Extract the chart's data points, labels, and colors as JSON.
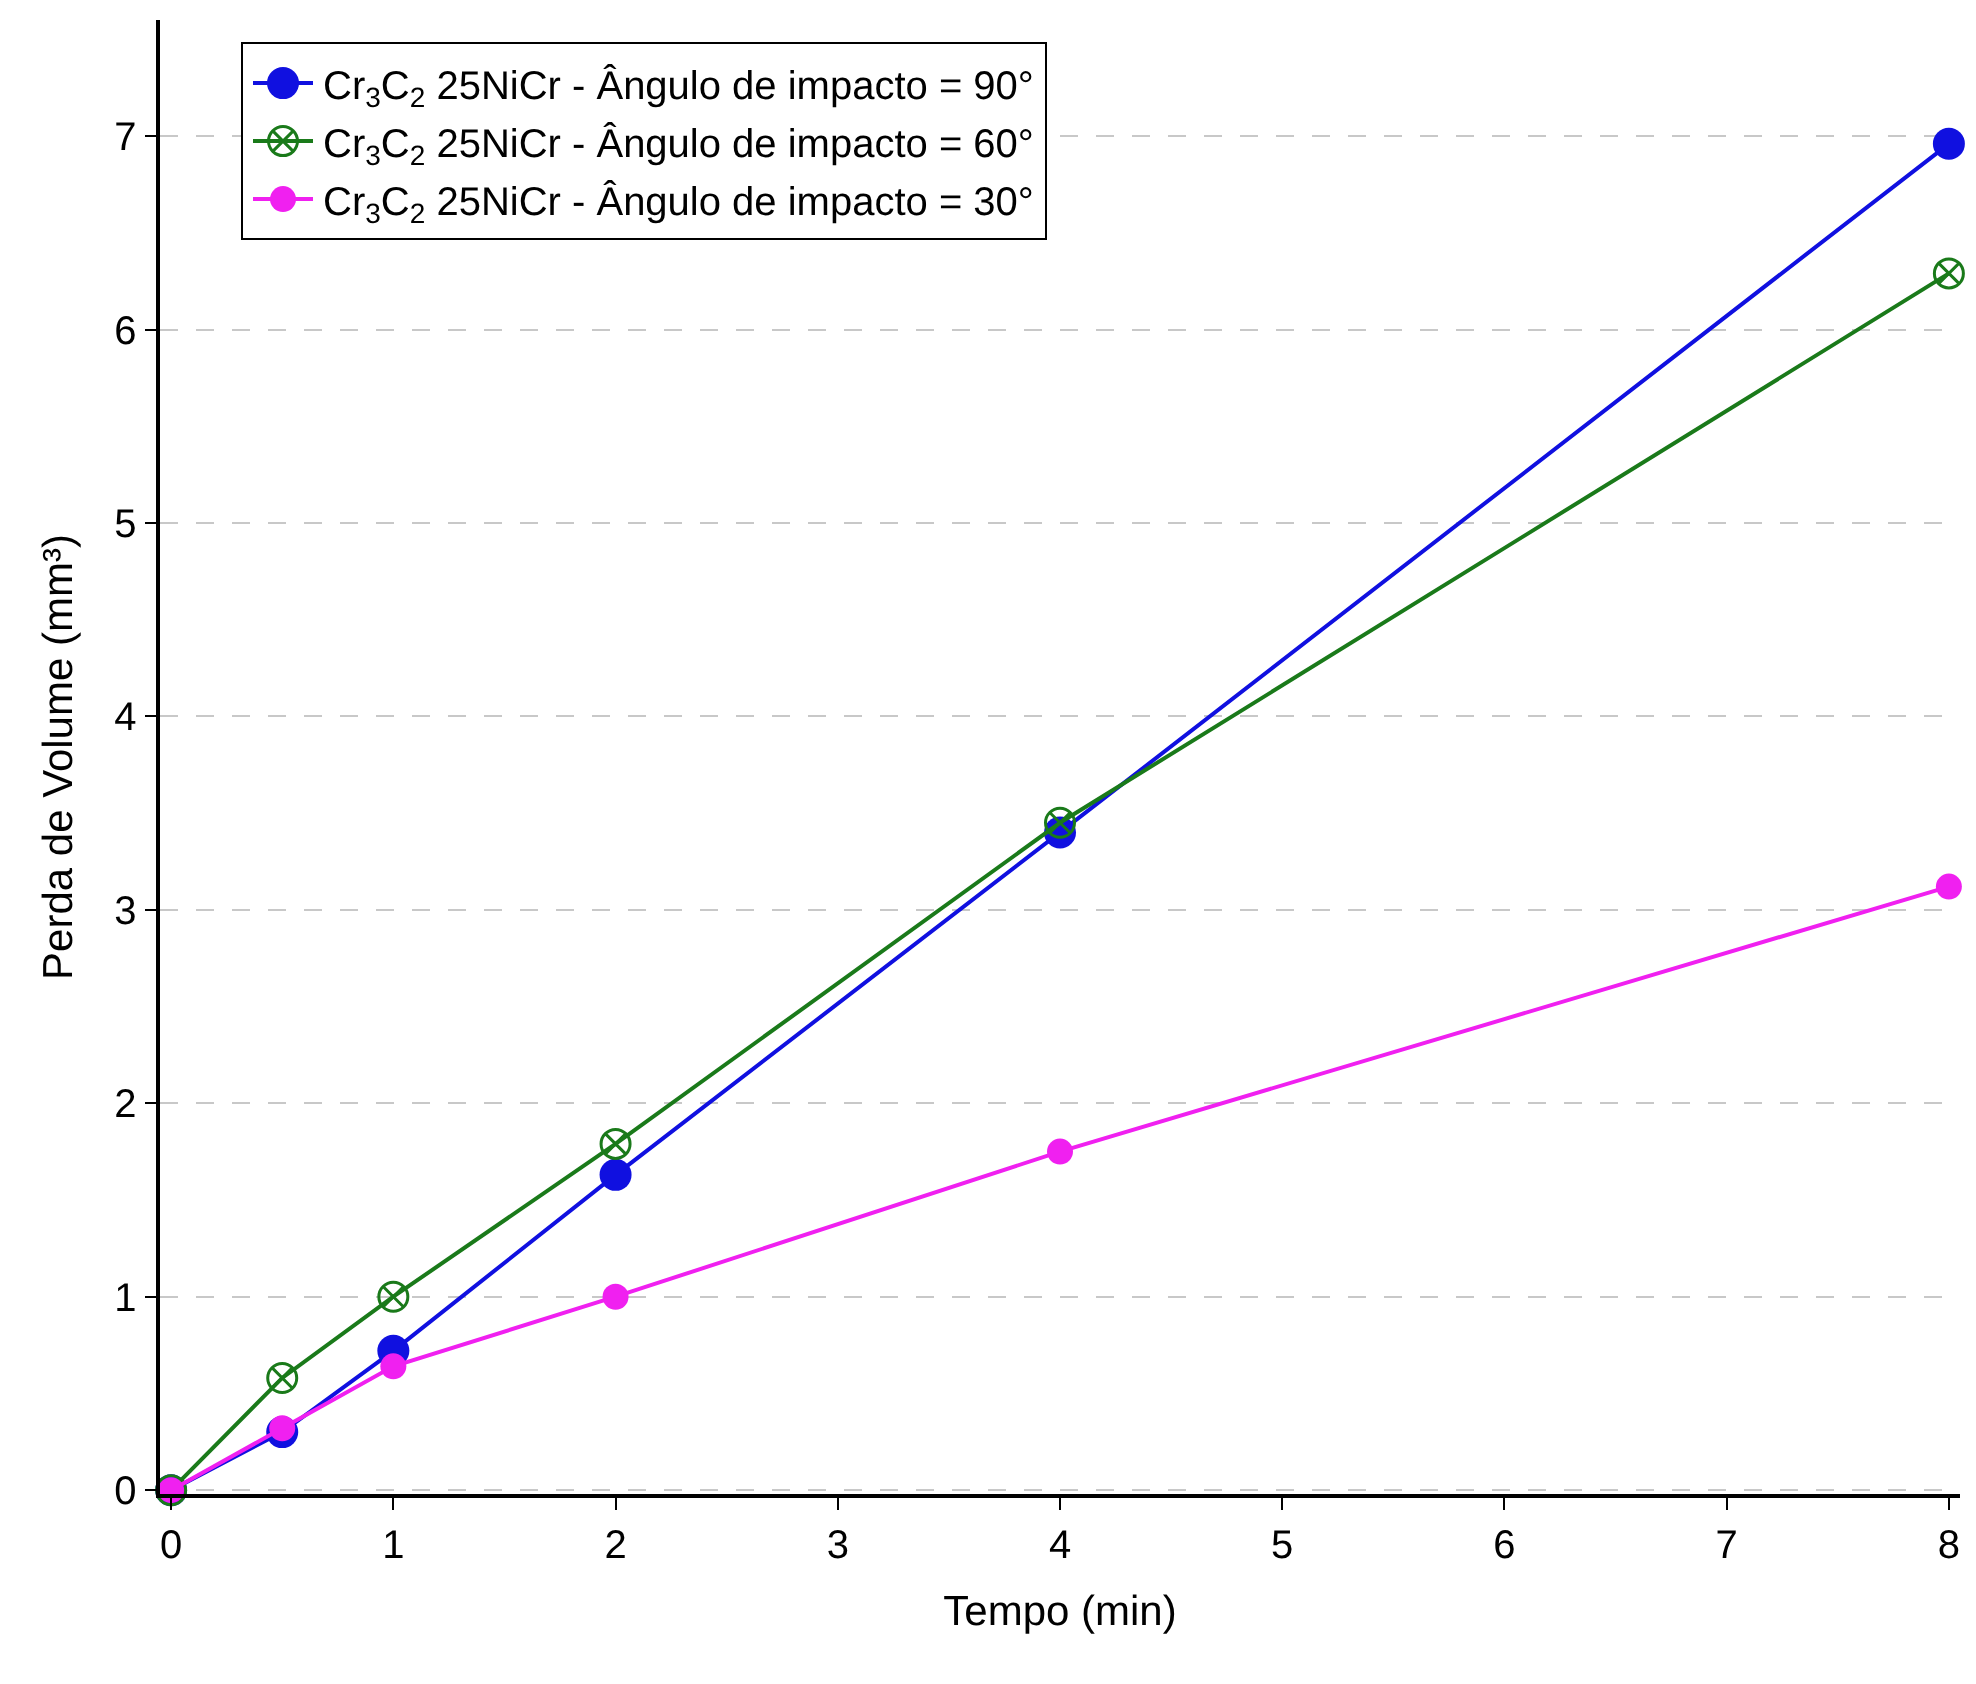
{
  "chart_data": {
    "type": "line",
    "xlabel": "Tempo (min)",
    "ylabel": "Perda de Volume (mm³)",
    "x": [
      0,
      0.5,
      1,
      2,
      4,
      8
    ],
    "series": [
      {
        "name": "Cr$_{3}$C$_{2}$ 25NiCr - Ângulo de impacto = 90°",
        "color": "#1010e0",
        "marker": "circle",
        "values": [
          0,
          0.3,
          0.72,
          1.63,
          3.4,
          6.96
        ]
      },
      {
        "name": "Cr$_{3}$C$_{2}$ 25NiCr - Ângulo de impacto = 60°",
        "color": "#1a7a1a",
        "marker": "cross",
        "values": [
          0,
          0.58,
          1.0,
          1.79,
          3.45,
          6.29
        ]
      },
      {
        "name": "Cr$_{3}$C$_{2}$ 25NiCr - Ângulo de impacto = 30°",
        "color": "#f020f0",
        "marker": "circle",
        "values": [
          0,
          0.32,
          0.64,
          1.0,
          1.75,
          3.12
        ]
      }
    ],
    "xlim": [
      -0.05,
      8.05
    ],
    "xticks": [
      0,
      1,
      2,
      3,
      4,
      5,
      6,
      7,
      8
    ],
    "ylim": [
      -0.02,
      7.6
    ],
    "yticks": [
      0,
      1,
      2,
      3,
      4,
      5,
      6,
      7
    ],
    "grid": "y",
    "legend": "top left",
    "line_style": "solid"
  }
}
